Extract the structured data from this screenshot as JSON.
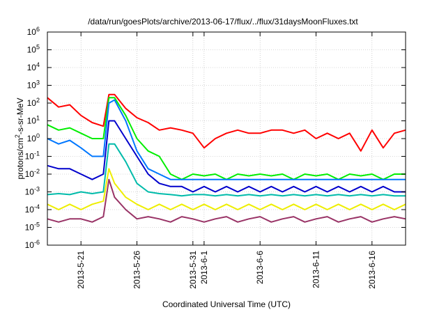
{
  "chart_data": {
    "type": "line",
    "title": "/data/run/goesPlots/archive/2013-06-17/flux/../flux/31daysMoonFluxes.txt",
    "xlabel": "Coordinated Universal Time (UTC)",
    "ylabel": "protons/cm²-s-sr-MeV",
    "ylabel_parts": {
      "pre": "protons/cm",
      "sup": "2",
      "post": "-s-sr-MeV"
    },
    "yscale": "log",
    "ylim": [
      1e-06,
      1000000.0
    ],
    "xlim": [
      "2013-05-18",
      "2013-06-19"
    ],
    "grid": true,
    "legend": "none",
    "x_ticks": [
      {
        "date": "2013-05-21",
        "label": "2013-5-21"
      },
      {
        "date": "2013-05-26",
        "label": "2013-5-26"
      },
      {
        "date": "2013-05-31",
        "label": "2013-5-31"
      },
      {
        "date": "2013-06-01",
        "label": "2013-6-1"
      },
      {
        "date": "2013-06-06",
        "label": "2013-6-6"
      },
      {
        "date": "2013-06-11",
        "label": "2013-6-11"
      },
      {
        "date": "2013-06-16",
        "label": "2013-6-16"
      }
    ],
    "y_ticks": [
      {
        "value": 1e-06,
        "base": "10",
        "exp": "-6"
      },
      {
        "value": 1e-05,
        "base": "10",
        "exp": "-5"
      },
      {
        "value": 0.0001,
        "base": "10",
        "exp": "-4"
      },
      {
        "value": 0.001,
        "base": "10",
        "exp": "-3"
      },
      {
        "value": 0.01,
        "base": "10",
        "exp": "-2"
      },
      {
        "value": 0.1,
        "base": "10",
        "exp": "-1"
      },
      {
        "value": 1,
        "base": "10",
        "exp": "0"
      },
      {
        "value": 10.0,
        "base": "10",
        "exp": "1"
      },
      {
        "value": 100.0,
        "base": "10",
        "exp": "2"
      },
      {
        "value": 1000.0,
        "base": "10",
        "exp": "3"
      },
      {
        "value": 10000.0,
        "base": "10",
        "exp": "4"
      },
      {
        "value": 100000.0,
        "base": "10",
        "exp": "5"
      },
      {
        "value": 1000000.0,
        "base": "10",
        "exp": "6"
      }
    ],
    "series": [
      {
        "color": "#ff0000",
        "x": [
          "2013-05-18",
          "2013-05-19",
          "2013-05-20",
          "2013-05-21",
          "2013-05-22",
          "2013-05-23",
          "2013-05-23T12",
          "2013-05-24",
          "2013-05-25",
          "2013-05-26",
          "2013-05-27",
          "2013-05-28",
          "2013-05-29",
          "2013-05-30",
          "2013-05-31",
          "2013-06-01",
          "2013-06-02",
          "2013-06-03",
          "2013-06-04",
          "2013-06-05",
          "2013-06-06",
          "2013-06-07",
          "2013-06-08",
          "2013-06-09",
          "2013-06-10",
          "2013-06-11",
          "2013-06-12",
          "2013-06-13",
          "2013-06-14",
          "2013-06-15",
          "2013-06-16",
          "2013-06-17",
          "2013-06-18",
          "2013-06-19"
        ],
        "y": [
          200,
          60,
          80,
          20,
          8,
          5,
          300,
          300,
          50,
          15,
          8,
          3,
          4,
          3,
          2,
          0.3,
          1,
          2,
          3,
          2,
          2,
          3,
          3,
          2,
          3,
          1,
          2,
          1,
          2,
          0.2,
          3,
          0.3,
          2,
          3
        ]
      },
      {
        "color": "#00ee00",
        "x": [
          "2013-05-18",
          "2013-05-19",
          "2013-05-20",
          "2013-05-21",
          "2013-05-22",
          "2013-05-23",
          "2013-05-23T12",
          "2013-05-24",
          "2013-05-25",
          "2013-05-26",
          "2013-05-27",
          "2013-05-28",
          "2013-05-29",
          "2013-05-30",
          "2013-05-31",
          "2013-06-01",
          "2013-06-02",
          "2013-06-03",
          "2013-06-04",
          "2013-06-05",
          "2013-06-06",
          "2013-06-07",
          "2013-06-08",
          "2013-06-09",
          "2013-06-10",
          "2013-06-11",
          "2013-06-12",
          "2013-06-13",
          "2013-06-14",
          "2013-06-15",
          "2013-06-16",
          "2013-06-17",
          "2013-06-18",
          "2013-06-19"
        ],
        "y": [
          6,
          3,
          4,
          2,
          1,
          1,
          200,
          200,
          20,
          1,
          0.2,
          0.1,
          0.01,
          0.005,
          0.01,
          0.008,
          0.01,
          0.005,
          0.01,
          0.008,
          0.01,
          0.008,
          0.01,
          0.005,
          0.01,
          0.008,
          0.01,
          0.005,
          0.01,
          0.008,
          0.01,
          0.005,
          0.01,
          0.01
        ]
      },
      {
        "color": "#0077ff",
        "x": [
          "2013-05-18",
          "2013-05-19",
          "2013-05-20",
          "2013-05-21",
          "2013-05-22",
          "2013-05-23",
          "2013-05-23T12",
          "2013-05-24",
          "2013-05-25",
          "2013-05-26",
          "2013-05-27",
          "2013-05-28",
          "2013-05-29",
          "2013-05-30",
          "2013-05-31",
          "2013-06-01",
          "2013-06-02",
          "2013-06-03",
          "2013-06-04",
          "2013-06-05",
          "2013-06-06",
          "2013-06-07",
          "2013-06-08",
          "2013-06-09",
          "2013-06-10",
          "2013-06-11",
          "2013-06-12",
          "2013-06-13",
          "2013-06-14",
          "2013-06-15",
          "2013-06-16",
          "2013-06-17",
          "2013-06-18",
          "2013-06-19"
        ],
        "y": [
          1,
          0.5,
          0.8,
          0.3,
          0.1,
          0.1,
          100,
          150,
          10,
          0.2,
          0.02,
          0.01,
          0.005,
          0.005,
          0.005,
          0.005,
          0.005,
          0.005,
          0.005,
          0.005,
          0.005,
          0.005,
          0.005,
          0.005,
          0.005,
          0.005,
          0.005,
          0.005,
          0.005,
          0.005,
          0.005,
          0.005,
          0.005,
          0.005
        ]
      },
      {
        "color": "#0000cc",
        "x": [
          "2013-05-18",
          "2013-05-19",
          "2013-05-20",
          "2013-05-21",
          "2013-05-22",
          "2013-05-23",
          "2013-05-23T12",
          "2013-05-24",
          "2013-05-25",
          "2013-05-26",
          "2013-05-27",
          "2013-05-28",
          "2013-05-29",
          "2013-05-30",
          "2013-05-31",
          "2013-06-01",
          "2013-06-02",
          "2013-06-03",
          "2013-06-04",
          "2013-06-05",
          "2013-06-06",
          "2013-06-07",
          "2013-06-08",
          "2013-06-09",
          "2013-06-10",
          "2013-06-11",
          "2013-06-12",
          "2013-06-13",
          "2013-06-14",
          "2013-06-15",
          "2013-06-16",
          "2013-06-17",
          "2013-06-18",
          "2013-06-19"
        ],
        "y": [
          0.03,
          0.02,
          0.02,
          0.01,
          0.005,
          0.01,
          10,
          10,
          1,
          0.1,
          0.01,
          0.003,
          0.002,
          0.002,
          0.001,
          0.002,
          0.001,
          0.002,
          0.001,
          0.002,
          0.001,
          0.002,
          0.001,
          0.002,
          0.001,
          0.002,
          0.001,
          0.002,
          0.001,
          0.002,
          0.001,
          0.002,
          0.001,
          0.001
        ]
      },
      {
        "color": "#00bbaa",
        "x": [
          "2013-05-18",
          "2013-05-19",
          "2013-05-20",
          "2013-05-21",
          "2013-05-22",
          "2013-05-23",
          "2013-05-23T12",
          "2013-05-24",
          "2013-05-25",
          "2013-05-26",
          "2013-05-27",
          "2013-05-28",
          "2013-05-29",
          "2013-05-30",
          "2013-05-31",
          "2013-06-01",
          "2013-06-02",
          "2013-06-03",
          "2013-06-04",
          "2013-06-05",
          "2013-06-06",
          "2013-06-07",
          "2013-06-08",
          "2013-06-09",
          "2013-06-10",
          "2013-06-11",
          "2013-06-12",
          "2013-06-13",
          "2013-06-14",
          "2013-06-15",
          "2013-06-16",
          "2013-06-17",
          "2013-06-18",
          "2013-06-19"
        ],
        "y": [
          0.0007,
          0.0008,
          0.0007,
          0.001,
          0.0008,
          0.001,
          0.5,
          0.5,
          0.05,
          0.003,
          0.001,
          0.0008,
          0.0007,
          0.0006,
          0.0007,
          0.0007,
          0.0006,
          0.0007,
          0.0006,
          0.0007,
          0.0006,
          0.0007,
          0.0006,
          0.0007,
          0.0006,
          0.0007,
          0.0006,
          0.0007,
          0.0006,
          0.0007,
          0.0006,
          0.0007,
          0.0006,
          0.0006
        ]
      },
      {
        "color": "#eeee00",
        "x": [
          "2013-05-18",
          "2013-05-19",
          "2013-05-20",
          "2013-05-21",
          "2013-05-22",
          "2013-05-23",
          "2013-05-23T12",
          "2013-05-24",
          "2013-05-25",
          "2013-05-26",
          "2013-05-27",
          "2013-05-28",
          "2013-05-29",
          "2013-05-30",
          "2013-05-31",
          "2013-06-01",
          "2013-06-02",
          "2013-06-03",
          "2013-06-04",
          "2013-06-05",
          "2013-06-06",
          "2013-06-07",
          "2013-06-08",
          "2013-06-09",
          "2013-06-10",
          "2013-06-11",
          "2013-06-12",
          "2013-06-13",
          "2013-06-14",
          "2013-06-15",
          "2013-06-16",
          "2013-06-17",
          "2013-06-18",
          "2013-06-19"
        ],
        "y": [
          0.0002,
          0.0001,
          0.0002,
          0.0001,
          0.0002,
          0.0003,
          0.02,
          0.003,
          0.0005,
          0.0002,
          0.0001,
          0.0002,
          0.0001,
          0.0002,
          0.0001,
          0.0002,
          0.0001,
          0.0002,
          0.0001,
          0.0002,
          0.0001,
          0.0002,
          0.0001,
          0.0002,
          0.0001,
          0.0002,
          0.0001,
          0.0002,
          0.0001,
          0.0002,
          0.0001,
          0.0002,
          0.0001,
          0.0002
        ]
      },
      {
        "color": "#993366",
        "x": [
          "2013-05-18",
          "2013-05-19",
          "2013-05-20",
          "2013-05-21",
          "2013-05-22",
          "2013-05-23",
          "2013-05-23T12",
          "2013-05-24",
          "2013-05-25",
          "2013-05-26",
          "2013-05-27",
          "2013-05-28",
          "2013-05-29",
          "2013-05-30",
          "2013-05-31",
          "2013-06-01",
          "2013-06-02",
          "2013-06-03",
          "2013-06-04",
          "2013-06-05",
          "2013-06-06",
          "2013-06-07",
          "2013-06-08",
          "2013-06-09",
          "2013-06-10",
          "2013-06-11",
          "2013-06-12",
          "2013-06-13",
          "2013-06-14",
          "2013-06-15",
          "2013-06-16",
          "2013-06-17",
          "2013-06-18",
          "2013-06-19"
        ],
        "y": [
          3e-05,
          2e-05,
          3e-05,
          3e-05,
          2e-05,
          4e-05,
          0.005,
          0.0005,
          0.0001,
          3e-05,
          4e-05,
          3e-05,
          2e-05,
          4e-05,
          3e-05,
          2e-05,
          3e-05,
          4e-05,
          2e-05,
          3e-05,
          4e-05,
          2e-05,
          3e-05,
          4e-05,
          2e-05,
          3e-05,
          4e-05,
          2e-05,
          3e-05,
          4e-05,
          2e-05,
          3e-05,
          4e-05,
          3e-05
        ]
      }
    ]
  }
}
